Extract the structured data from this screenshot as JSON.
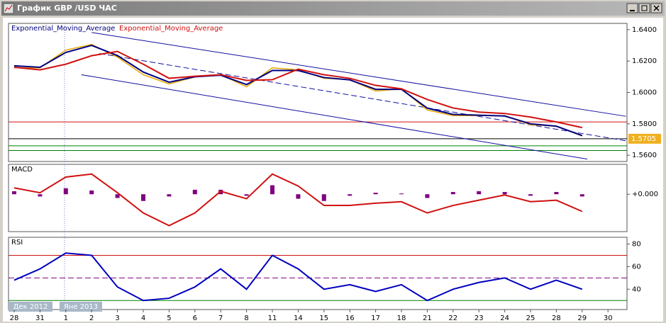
{
  "window": {
    "title": "График GBP /USD ЧАС"
  },
  "chart_data": [
    {
      "type": "line",
      "series": [
        {
          "color": "#e6a800",
          "values": [
            1.6157,
            1.6157,
            1.627,
            1.6306,
            1.6225,
            1.6113,
            1.6054,
            1.6099,
            1.6113,
            1.6036,
            1.6157,
            1.6144,
            1.609,
            1.6081,
            1.6009,
            1.6023,
            1.5888,
            1.5852,
            1.5852,
            1.5852,
            1.5794,
            1.5785,
            1.5722,
            null
          ]
        },
        {
          "name": "Exponential_Moving_Average",
          "color": "#000080",
          "values": [
            1.617,
            1.616,
            1.6255,
            1.63,
            1.6235,
            1.613,
            1.6065,
            1.61,
            1.611,
            1.605,
            1.614,
            1.614,
            1.6095,
            1.608,
            1.602,
            1.602,
            1.59,
            1.586,
            1.5855,
            1.585,
            1.58,
            1.5785,
            1.5725,
            null
          ]
        },
        {
          "name": "Exponential_Moving_Average",
          "color": "#d01010",
          "values": [
            1.616,
            1.6144,
            1.618,
            1.6234,
            1.6261,
            1.618,
            1.609,
            1.6103,
            1.6113,
            1.6077,
            1.6081,
            1.6148,
            1.6113,
            1.609,
            1.6045,
            1.6023,
            1.5955,
            1.5901,
            1.5875,
            1.5866,
            1.5843,
            1.5812,
            1.5776,
            null
          ]
        }
      ],
      "ylim": [
        1.556,
        1.644
      ],
      "yticks": [
        {
          "value": 1.64,
          "label": "1.6400"
        },
        {
          "value": 1.62,
          "label": "1.6200"
        },
        {
          "value": 1.6,
          "label": "1.6000"
        },
        {
          "value": 1.58,
          "label": "1.5800"
        },
        {
          "value": 1.56,
          "label": "1.5600"
        }
      ],
      "levels": [
        {
          "value": 1.5812,
          "color": "#d01010"
        },
        {
          "value": 1.5705,
          "color": "#000000",
          "label": "1.5705"
        },
        {
          "value": 1.566,
          "color": "#008000"
        },
        {
          "value": 1.563,
          "color": "#008000"
        }
      ],
      "trend_lines": [
        {
          "x": [
            3.0,
            23.7
          ],
          "y": [
            1.6382,
            1.5848
          ],
          "dash": false
        },
        {
          "x": [
            3.3,
            23.7
          ],
          "y": [
            1.6248,
            1.5692
          ],
          "dash": true
        },
        {
          "x": [
            2.6,
            22.2
          ],
          "y": [
            1.6113,
            1.5575
          ],
          "dash": false
        }
      ]
    },
    {
      "type": "macd",
      "title": "MACD",
      "series": [
        {
          "color": "#d01010",
          "values": [
            0.00085,
            0.0002,
            0.0023,
            0.0027,
            0.0002,
            -0.0025,
            -0.0042,
            -0.0025,
            0.0004,
            -0.0006,
            0.0027,
            0.0011,
            -0.0015,
            -0.0015,
            -0.0012,
            -0.001,
            -0.0025,
            -0.0015,
            -0.0008,
            -0.0001,
            -0.001,
            -0.0008,
            -0.0023,
            null
          ]
        }
      ],
      "histogram": {
        "color": "#800080",
        "values": [
          0.0004,
          -0.0003,
          0.0008,
          0.0005,
          -0.0005,
          -0.0009,
          -0.0003,
          0.0006,
          0.0006,
          -0.0002,
          0.0012,
          -0.0006,
          -0.0009,
          -0.0002,
          0.0002,
          0.0001,
          -0.0005,
          0.0003,
          0.0004,
          0.0003,
          -0.0002,
          0.0003,
          -0.0003,
          null
        ]
      },
      "ylim": [
        -0.005,
        0.004
      ],
      "yticks": [
        {
          "value": 0,
          "label": "+0.000"
        }
      ]
    },
    {
      "type": "line",
      "title": "RSI",
      "series": [
        {
          "color": "#0000c0",
          "values": [
            48,
            58,
            72,
            70,
            42,
            30,
            32,
            42,
            58,
            40,
            70,
            58,
            40,
            44,
            38,
            44,
            30,
            40,
            46,
            50,
            40,
            48,
            40,
            null
          ]
        }
      ],
      "ylim": [
        22,
        86
      ],
      "yticks": [
        40,
        60,
        80
      ],
      "levels": [
        {
          "value": 70,
          "color": "#d01010"
        },
        {
          "value": 50,
          "color": "#800080",
          "dash": true
        },
        {
          "value": 30,
          "color": "#008000"
        }
      ],
      "categories": [
        "28",
        "31",
        "1",
        "2",
        "3",
        "4",
        "5",
        "6",
        "7",
        "8",
        "11",
        "14",
        "15",
        "16",
        "17",
        "18",
        "21",
        "22",
        "23",
        "24",
        "25",
        "28",
        "29",
        "30"
      ],
      "period_labels": [
        "Дек 2012",
        "Яне 2013"
      ]
    }
  ]
}
